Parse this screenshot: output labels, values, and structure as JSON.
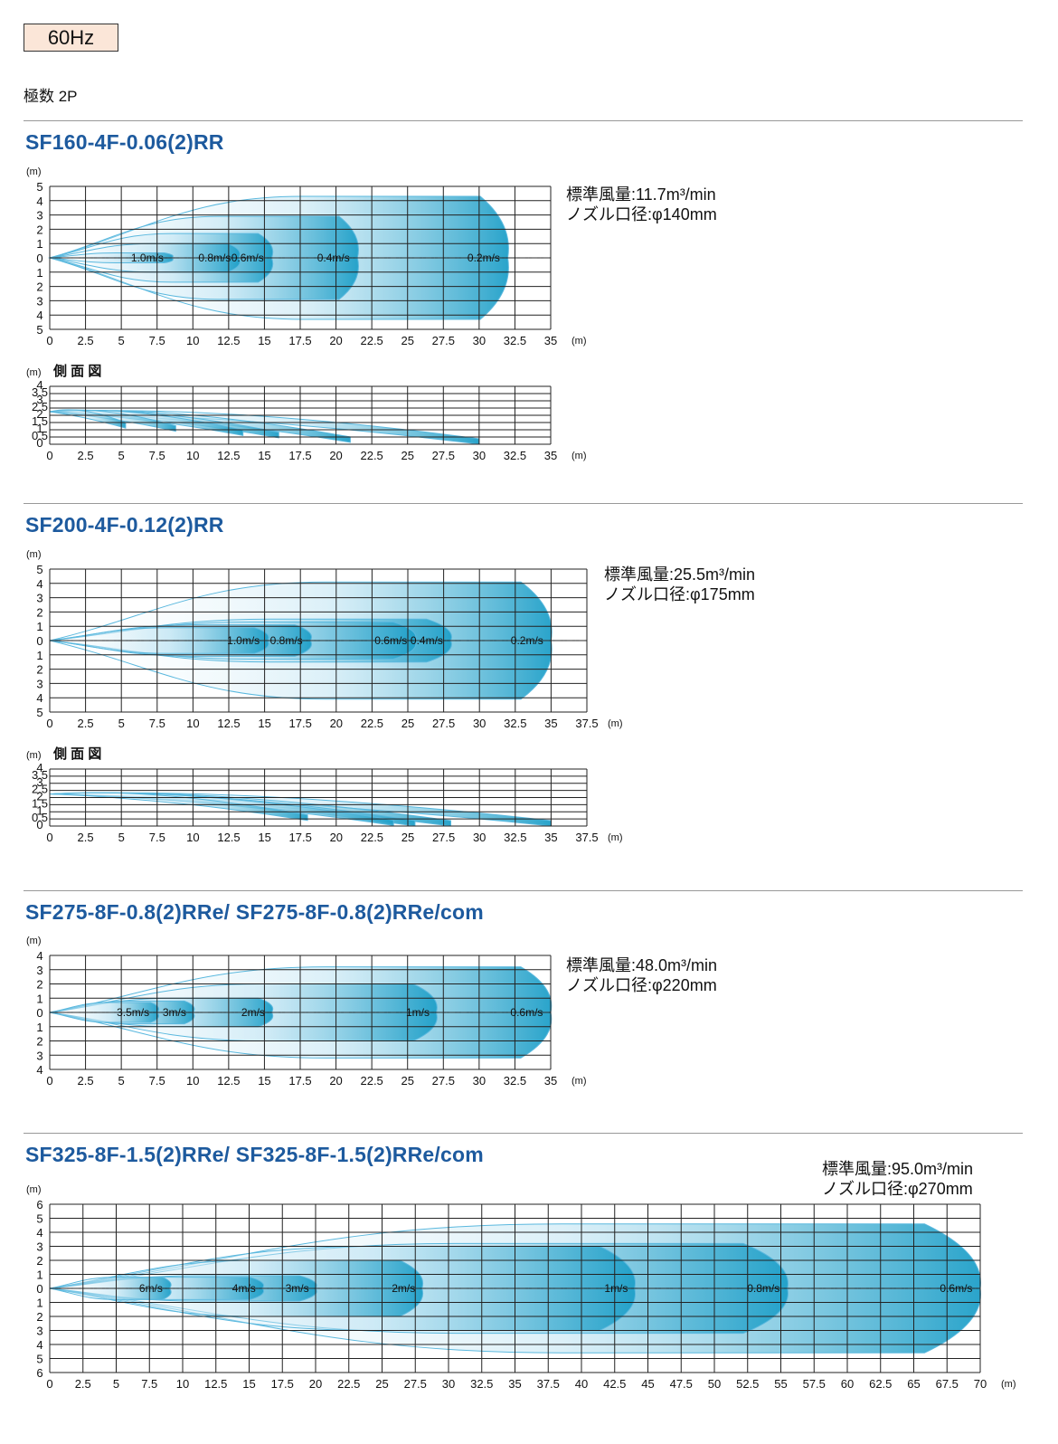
{
  "header": {
    "frequency": "60Hz",
    "poles": "極数 2P"
  },
  "sections": [
    {
      "model": "SF160-4F-0.06(2)RR",
      "airflow": "標準風量:11.7m³/min",
      "nozzle": "ノズル口径:φ140mm"
    },
    {
      "model": "SF200-4F-0.12(2)RR",
      "airflow": "標準風量:25.5m³/min",
      "nozzle": "ノズル口径:φ175mm"
    },
    {
      "model": "SF275-8F-0.8(2)RRe/ SF275-8F-0.8(2)RRe/com",
      "airflow": "標準風量:48.0m³/min",
      "nozzle": "ノズル口径:φ220mm"
    },
    {
      "model": "SF325-8F-1.5(2)RRe/ SF325-8F-1.5(2)RRe/com",
      "airflow": "標準風量:95.0m³/min",
      "nozzle": "ノズル口径:φ270mm"
    }
  ],
  "colors": {
    "title": "#1d5a9e",
    "plume_light": "#e8f5fb",
    "plume_dark": "#1e9fc8",
    "outline": "#5ab8de",
    "badge_bg": "#fbe6d8"
  },
  "chart_data": [
    {
      "type": "area",
      "view": "top",
      "unit_x": "(m)",
      "unit_y": "(m)",
      "xlim": [
        0,
        35
      ],
      "ylim": [
        -5,
        5
      ],
      "x_ticks": [
        "0",
        "2.5",
        "5",
        "7.5",
        "10",
        "12.5",
        "15",
        "17.5",
        "20",
        "22.5",
        "25",
        "27.5",
        "30",
        "32.5",
        "35"
      ],
      "y_ticks": [
        "5",
        "4",
        "3",
        "2",
        "1",
        "0",
        "1",
        "2",
        "3",
        "4",
        "5"
      ],
      "isovels": [
        {
          "label": "1.0m/s",
          "reach": 8.5,
          "half_width": 0.35
        },
        {
          "label": "0.8m/s",
          "reach": 13.2,
          "half_width": 1.0
        },
        {
          "label": "0.6m/s",
          "reach": 15.5,
          "half_width": 1.7
        },
        {
          "label": "0.4m/s",
          "reach": 21.5,
          "half_width": 2.9
        },
        {
          "label": "0.2m/s",
          "reach": 32.0,
          "half_width": 4.3
        }
      ]
    },
    {
      "type": "area",
      "view": "side",
      "title": "側 面 図",
      "unit_x": "(m)",
      "unit_y": "(m)",
      "xlim": [
        0,
        35
      ],
      "ylim": [
        0,
        4
      ],
      "x_ticks": [
        "0",
        "2.5",
        "5",
        "7.5",
        "10",
        "12.5",
        "15",
        "17.5",
        "20",
        "22.5",
        "25",
        "27.5",
        "30",
        "32.5",
        "35"
      ],
      "y_ticks": [
        "4",
        "3.5",
        "3",
        "2.5",
        "2",
        "1.5",
        "1",
        "0.5",
        "0"
      ],
      "isovels": [
        {
          "reach": 5.3
        },
        {
          "reach": 8.8
        },
        {
          "reach": 13.5
        },
        {
          "reach": 16.0
        },
        {
          "reach": 21.0
        },
        {
          "reach": 30.0
        }
      ]
    },
    {
      "type": "area",
      "view": "top",
      "unit_x": "(m)",
      "unit_y": "(m)",
      "xlim": [
        0,
        37.5
      ],
      "ylim": [
        -5,
        5
      ],
      "x_ticks": [
        "0",
        "2.5",
        "5",
        "7.5",
        "10",
        "12.5",
        "15",
        "17.5",
        "20",
        "22.5",
        "25",
        "27.5",
        "30",
        "32.5",
        "35",
        "37.5"
      ],
      "y_ticks": [
        "5",
        "4",
        "3",
        "2",
        "1",
        "0",
        "1",
        "2",
        "3",
        "4",
        "5"
      ],
      "isovels": [
        {
          "label": "1.0m/s",
          "reach": 15.2,
          "half_width": 0.9
        },
        {
          "label": "0.8m/s",
          "reach": 18.2,
          "half_width": 1.1
        },
        {
          "label": "0.6m/s",
          "reach": 25.5,
          "half_width": 1.3
        },
        {
          "label": "0.4m/s",
          "reach": 28.0,
          "half_width": 1.5
        },
        {
          "label": "0.2m/s",
          "reach": 35.0,
          "half_width": 4.1
        }
      ]
    },
    {
      "type": "area",
      "view": "side",
      "title": "側 面 図",
      "unit_x": "(m)",
      "unit_y": "(m)",
      "xlim": [
        0,
        37.5
      ],
      "ylim": [
        0,
        4
      ],
      "x_ticks": [
        "0",
        "2.5",
        "5",
        "7.5",
        "10",
        "12.5",
        "15",
        "17.5",
        "20",
        "22.5",
        "25",
        "27.5",
        "30",
        "32.5",
        "35",
        "37.5"
      ],
      "y_ticks": [
        "4",
        "3.5",
        "3",
        "2.5",
        "2",
        "1.5",
        "1",
        "0.5",
        "0"
      ],
      "isovels": [
        {
          "reach": 18.0
        },
        {
          "reach": 24.0
        },
        {
          "reach": 25.5
        },
        {
          "reach": 28.0
        },
        {
          "reach": 35.0
        }
      ]
    },
    {
      "type": "area",
      "view": "top",
      "unit_x": "(m)",
      "unit_y": "(m)",
      "xlim": [
        0,
        35
      ],
      "ylim": [
        -4,
        4
      ],
      "x_ticks": [
        "0",
        "2.5",
        "5",
        "7.5",
        "10",
        "12.5",
        "15",
        "17.5",
        "20",
        "22.5",
        "25",
        "27.5",
        "30",
        "32.5",
        "35"
      ],
      "y_ticks": [
        "4",
        "3",
        "2",
        "1",
        "0",
        "1",
        "2",
        "3",
        "4"
      ],
      "isovels": [
        {
          "label": "3.5m/s",
          "reach": 7.5,
          "half_width": 0.7
        },
        {
          "label": "3m/s",
          "reach": 10.0,
          "half_width": 0.8
        },
        {
          "label": "2m/s",
          "reach": 15.5,
          "half_width": 1.0
        },
        {
          "label": "1m/s",
          "reach": 27.0,
          "half_width": 2.0
        },
        {
          "label": "0.6m/s",
          "reach": 35.0,
          "half_width": 3.2
        }
      ]
    },
    {
      "type": "area",
      "view": "top",
      "unit_x": "(m)",
      "unit_y": "(m)",
      "xlim": [
        0,
        70
      ],
      "ylim": [
        -6,
        6
      ],
      "x_ticks": [
        "0",
        "2.5",
        "5",
        "7.5",
        "10",
        "12.5",
        "15",
        "17.5",
        "20",
        "22.5",
        "25",
        "27.5",
        "30",
        "32.5",
        "35",
        "37.5",
        "40",
        "42.5",
        "45",
        "47.5",
        "50",
        "52.5",
        "55",
        "57.5",
        "60",
        "62.5",
        "65",
        "67.5",
        "70"
      ],
      "y_ticks": [
        "6",
        "5",
        "4",
        "3",
        "2",
        "1",
        "0",
        "1",
        "2",
        "3",
        "4",
        "5",
        "6"
      ],
      "isovels": [
        {
          "label": "6m/s",
          "reach": 9.0,
          "half_width": 0.8
        },
        {
          "label": "4m/s",
          "reach": 16.0,
          "half_width": 0.8
        },
        {
          "label": "3m/s",
          "reach": 20.0,
          "half_width": 0.9
        },
        {
          "label": "2m/s",
          "reach": 28.0,
          "half_width": 2.0
        },
        {
          "label": "1m/s",
          "reach": 44.0,
          "half_width": 3.0
        },
        {
          "label": "0.8m/s",
          "reach": 55.5,
          "half_width": 3.2
        },
        {
          "label": "0.6m/s",
          "reach": 70.0,
          "half_width": 4.6
        }
      ]
    }
  ]
}
